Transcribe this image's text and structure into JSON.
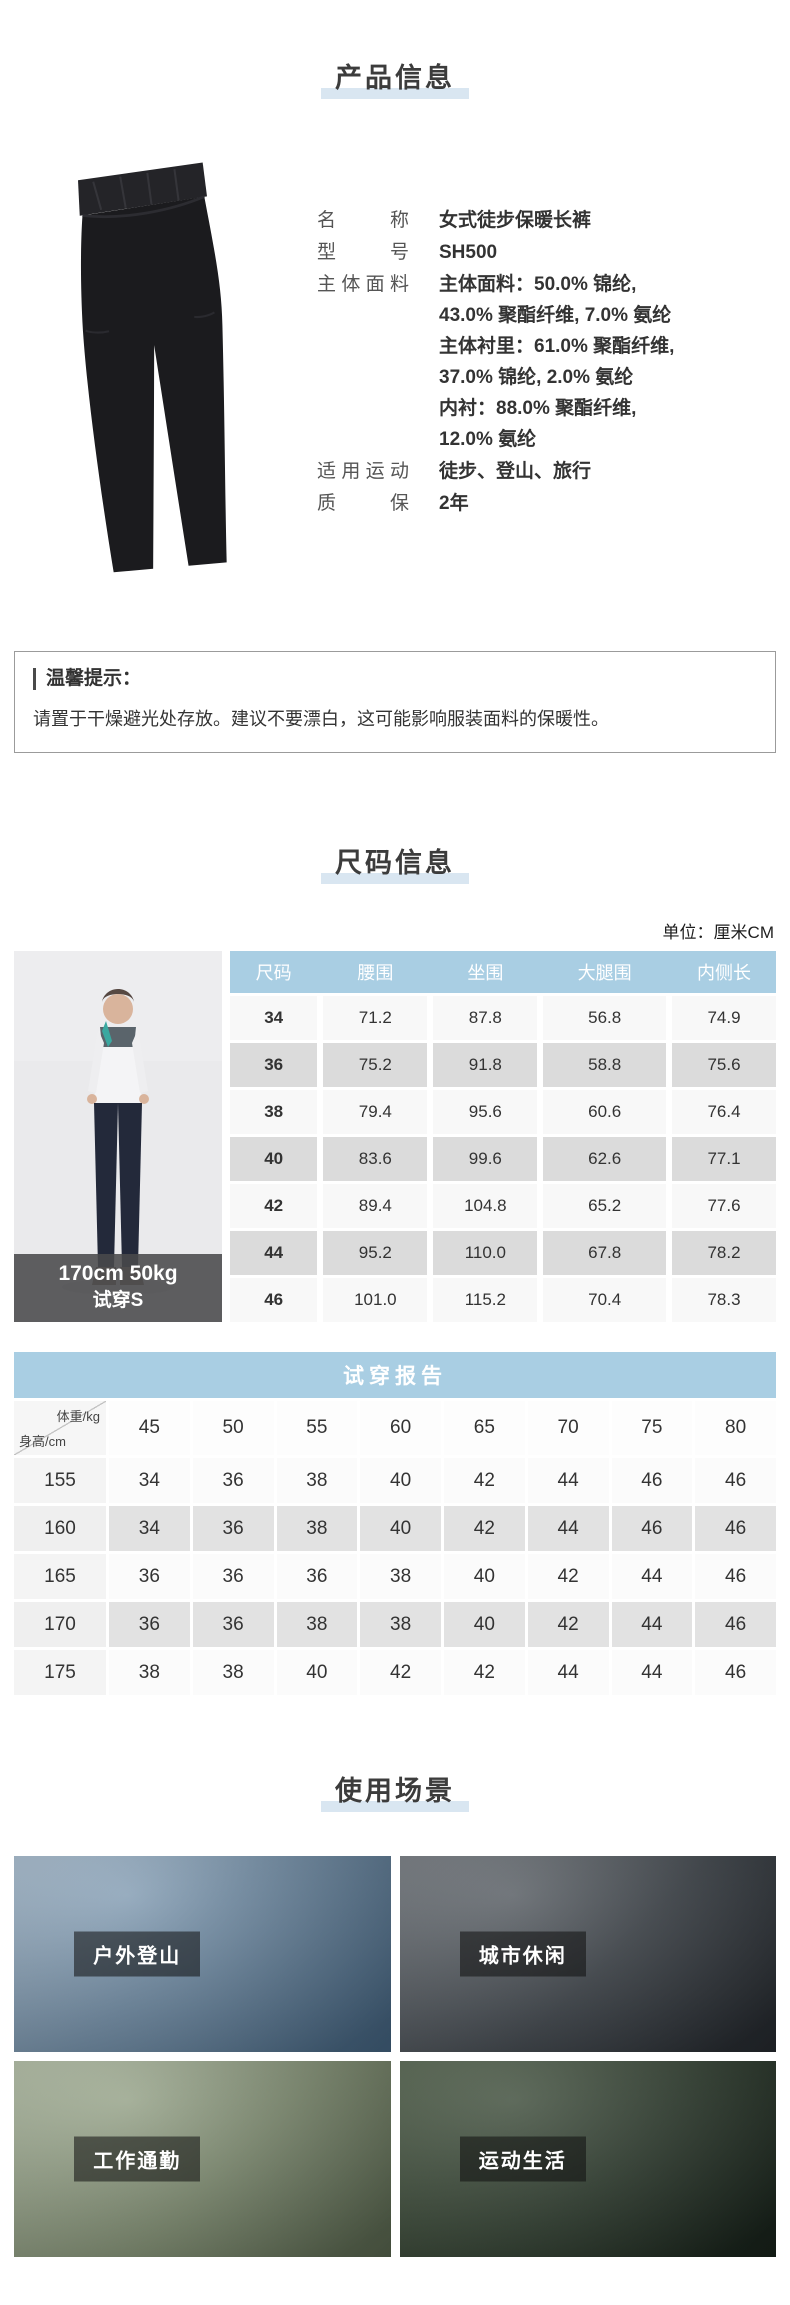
{
  "product_info": {
    "title": "产品信息",
    "specs": [
      {
        "label": "名称",
        "value": "女式徒步保暖长裤"
      },
      {
        "label": "型号",
        "value": "SH500"
      },
      {
        "label": "主体面料",
        "value_lines": [
          "主体面料：50.0% 锦纶,",
          "43.0% 聚酯纤维, 7.0% 氨纶",
          "主体衬里：61.0% 聚酯纤维,",
          "37.0% 锦纶, 2.0% 氨纶",
          "内衬：88.0% 聚酯纤维,",
          "12.0% 氨纶"
        ]
      },
      {
        "label": "适用运动",
        "value": "徒步、登山、旅行"
      },
      {
        "label": "质保",
        "value": "2年"
      }
    ]
  },
  "tips": {
    "title": "温馨提示：",
    "body": "请置于干燥避光处存放。建议不要漂白，这可能影响服装面料的保暖性。"
  },
  "size_info": {
    "title": "尺码信息",
    "unit": "单位：厘米CM",
    "model_caption_line1": "170cm 50kg",
    "model_caption_line2": "试穿S",
    "table": {
      "headers": [
        "尺码",
        "腰围",
        "坐围",
        "大腿围",
        "内侧长"
      ],
      "rows": [
        [
          "34",
          "71.2",
          "87.8",
          "56.8",
          "74.9"
        ],
        [
          "36",
          "75.2",
          "91.8",
          "58.8",
          "75.6"
        ],
        [
          "38",
          "79.4",
          "95.6",
          "60.6",
          "76.4"
        ],
        [
          "40",
          "83.6",
          "99.6",
          "62.6",
          "77.1"
        ],
        [
          "42",
          "89.4",
          "104.8",
          "65.2",
          "77.6"
        ],
        [
          "44",
          "95.2",
          "110.0",
          "67.8",
          "78.2"
        ],
        [
          "46",
          "101.0",
          "115.2",
          "70.4",
          "78.3"
        ]
      ]
    }
  },
  "fit_report": {
    "title": "试穿报告",
    "corner_top": "体重/kg",
    "corner_bottom": "身高/cm",
    "weights": [
      "45",
      "50",
      "55",
      "60",
      "65",
      "70",
      "75",
      "80"
    ],
    "rows": [
      {
        "height": "155",
        "sizes": [
          "34",
          "36",
          "38",
          "40",
          "42",
          "44",
          "46",
          "46"
        ]
      },
      {
        "height": "160",
        "sizes": [
          "34",
          "36",
          "38",
          "40",
          "42",
          "44",
          "46",
          "46"
        ]
      },
      {
        "height": "165",
        "sizes": [
          "36",
          "36",
          "36",
          "38",
          "40",
          "42",
          "44",
          "46"
        ]
      },
      {
        "height": "170",
        "sizes": [
          "36",
          "36",
          "38",
          "38",
          "40",
          "42",
          "44",
          "46"
        ]
      },
      {
        "height": "175",
        "sizes": [
          "38",
          "38",
          "40",
          "42",
          "42",
          "44",
          "44",
          "46"
        ]
      }
    ]
  },
  "usage": {
    "title": "使用场景",
    "scenes": [
      {
        "label": "户外登山"
      },
      {
        "label": "城市休闲"
      },
      {
        "label": "工作通勤"
      },
      {
        "label": "运动生活"
      }
    ]
  },
  "colors": {
    "table_header_blue": "#a9cee3",
    "title_underline_blue": "#d9e6f1",
    "row_gray": "#dbdbdb",
    "caption_bar_gray": "#49494b"
  }
}
